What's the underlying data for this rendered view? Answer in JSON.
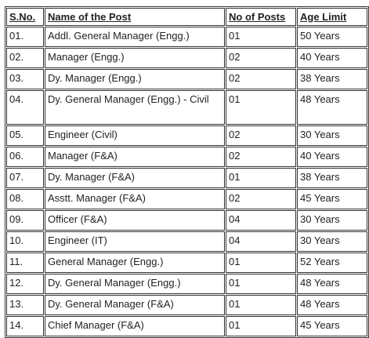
{
  "table": {
    "headers": {
      "sno": "S.No.",
      "name": "Name of the Post",
      "posts": "No of Posts",
      "age": "Age Limit"
    },
    "rows": [
      {
        "sno": "01.",
        "name": "Addl. General Manager (Engg.)",
        "posts": "01",
        "age": "50 Years"
      },
      {
        "sno": "02.",
        "name": "Manager (Engg.)",
        "posts": "02",
        "age": "40 Years"
      },
      {
        "sno": "03.",
        "name": "Dy. Manager (Engg.)",
        "posts": "02",
        "age": "38 Years"
      },
      {
        "sno": "04.",
        "name": "Dy. General Manager (Engg.) - Civil",
        "posts": "01",
        "age": "48 Years"
      },
      {
        "sno": "05.",
        "name": "Engineer (Civil)",
        "posts": "02",
        "age": "30 Years"
      },
      {
        "sno": "06.",
        "name": "Manager (F&A)",
        "posts": "02",
        "age": "40 Years"
      },
      {
        "sno": "07.",
        "name": "Dy. Manager (F&A)",
        "posts": "01",
        "age": "38 Years"
      },
      {
        "sno": "08.",
        "name": "Asstt. Manager (F&A)",
        "posts": "02",
        "age": "45 Years"
      },
      {
        "sno": "09.",
        "name": "Officer (F&A)",
        "posts": "04",
        "age": "30 Years"
      },
      {
        "sno": "10.",
        "name": "Engineer (IT)",
        "posts": "04",
        "age": "30 Years"
      },
      {
        "sno": "11.",
        "name": "General Manager (Engg.)",
        "posts": "01",
        "age": "52 Years"
      },
      {
        "sno": "12.",
        "name": "Dy. General Manager (Engg.)",
        "posts": "01",
        "age": "48 Years"
      },
      {
        "sno": "13.",
        "name": "Dy. General Manager (F&A)",
        "posts": "01",
        "age": "48 Years"
      },
      {
        "sno": "14.",
        "name": "Chief Manager (F&A)",
        "posts": "01",
        "age": "45 Years"
      }
    ]
  }
}
